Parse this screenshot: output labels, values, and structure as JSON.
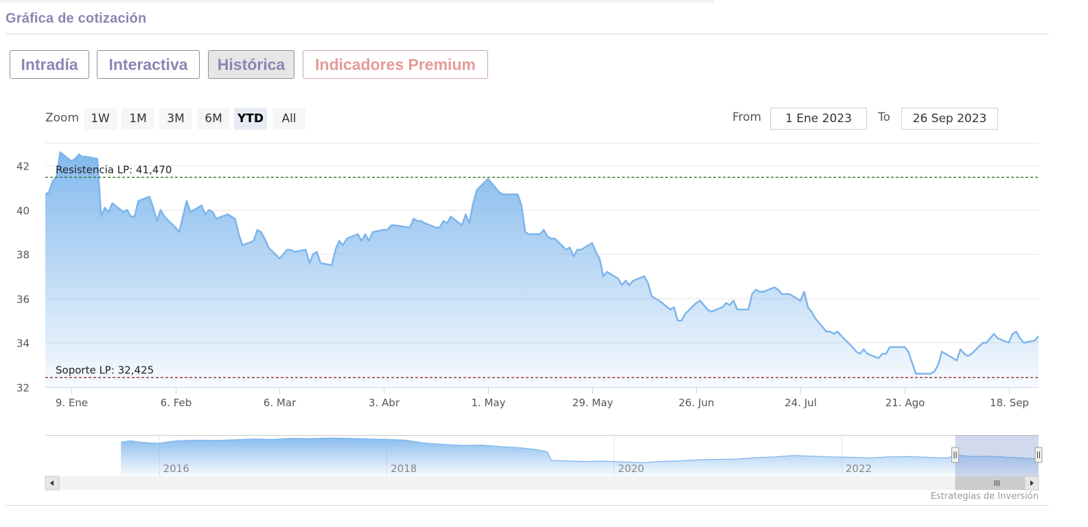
{
  "section": {
    "title": "Gráfica de cotización"
  },
  "tabs": [
    {
      "label": "Intradía",
      "active": false
    },
    {
      "label": "Interactiva",
      "active": false
    },
    {
      "label": "Histórica",
      "active": true
    },
    {
      "label": "Indicadores Premium",
      "active": false
    }
  ],
  "zoom": {
    "label": "Zoom",
    "buttons": [
      "1W",
      "1M",
      "3M",
      "6M",
      "YTD",
      "All"
    ],
    "selected": "YTD"
  },
  "range": {
    "from_label": "From",
    "from_value": "1 Ene 2023",
    "to_label": "To",
    "to_value": "26 Sep 2023"
  },
  "credit": "Estrategias de Inversión",
  "colors": {
    "series": "#7cb5ec",
    "resistance": "#1a6b1a",
    "support": "#8b1a1a",
    "tab_text": "#8a86b3",
    "premium_text": "#e59b96"
  },
  "chart_data": {
    "type": "area",
    "x_start": "2023-01-02",
    "x_end": "2023-09-26",
    "ylim": [
      32,
      43
    ],
    "y_ticks": [
      32,
      34,
      36,
      38,
      40,
      42
    ],
    "x_ticks": [
      {
        "date": "2023-01-09",
        "label": "9. Ene"
      },
      {
        "date": "2023-02-06",
        "label": "6. Feb"
      },
      {
        "date": "2023-03-06",
        "label": "6. Mar"
      },
      {
        "date": "2023-04-03",
        "label": "3. Abr"
      },
      {
        "date": "2023-05-01",
        "label": "1. May"
      },
      {
        "date": "2023-05-29",
        "label": "29. May"
      },
      {
        "date": "2023-06-26",
        "label": "26. Jun"
      },
      {
        "date": "2023-07-24",
        "label": "24. Jul"
      },
      {
        "date": "2023-08-21",
        "label": "21. Ago"
      },
      {
        "date": "2023-09-18",
        "label": "18. Sep"
      }
    ],
    "series": [
      {
        "points": [
          [
            "2023-01-02",
            40.7
          ],
          [
            "2023-01-03",
            40.8
          ],
          [
            "2023-01-04",
            41.3
          ],
          [
            "2023-01-05",
            41.5
          ],
          [
            "2023-01-06",
            42.6
          ],
          [
            "2023-01-09",
            42.2
          ],
          [
            "2023-01-10",
            42.3
          ],
          [
            "2023-01-11",
            42.5
          ],
          [
            "2023-01-12",
            42.4
          ],
          [
            "2023-01-13",
            42.4
          ],
          [
            "2023-01-16",
            42.3
          ],
          [
            "2023-01-17",
            39.7
          ],
          [
            "2023-01-18",
            40.1
          ],
          [
            "2023-01-19",
            39.9
          ],
          [
            "2023-01-20",
            40.3
          ],
          [
            "2023-01-23",
            39.9
          ],
          [
            "2023-01-24",
            40.0
          ],
          [
            "2023-01-25",
            39.7
          ],
          [
            "2023-01-26",
            39.7
          ],
          [
            "2023-01-27",
            40.4
          ],
          [
            "2023-01-30",
            40.6
          ],
          [
            "2023-01-31",
            40.1
          ],
          [
            "2023-02-01",
            39.5
          ],
          [
            "2023-02-02",
            40.0
          ],
          [
            "2023-02-03",
            39.7
          ],
          [
            "2023-02-06",
            39.2
          ],
          [
            "2023-02-07",
            39.0
          ],
          [
            "2023-02-08",
            39.7
          ],
          [
            "2023-02-09",
            40.4
          ],
          [
            "2023-02-10",
            39.9
          ],
          [
            "2023-02-13",
            40.2
          ],
          [
            "2023-02-14",
            39.8
          ],
          [
            "2023-02-15",
            40.0
          ],
          [
            "2023-02-16",
            39.9
          ],
          [
            "2023-02-17",
            39.6
          ],
          [
            "2023-02-20",
            39.8
          ],
          [
            "2023-02-21",
            39.7
          ],
          [
            "2023-02-22",
            39.6
          ],
          [
            "2023-02-23",
            38.9
          ],
          [
            "2023-02-24",
            38.4
          ],
          [
            "2023-02-27",
            38.6
          ],
          [
            "2023-02-28",
            39.1
          ],
          [
            "2023-03-01",
            39.0
          ],
          [
            "2023-03-02",
            38.7
          ],
          [
            "2023-03-03",
            38.3
          ],
          [
            "2023-03-06",
            37.8
          ],
          [
            "2023-03-07",
            38.0
          ],
          [
            "2023-03-08",
            38.2
          ],
          [
            "2023-03-09",
            38.2
          ],
          [
            "2023-03-10",
            38.1
          ],
          [
            "2023-03-13",
            38.2
          ],
          [
            "2023-03-14",
            37.6
          ],
          [
            "2023-03-15",
            38.0
          ],
          [
            "2023-03-16",
            38.1
          ],
          [
            "2023-03-17",
            37.6
          ],
          [
            "2023-03-20",
            37.5
          ],
          [
            "2023-03-21",
            38.2
          ],
          [
            "2023-03-22",
            38.6
          ],
          [
            "2023-03-23",
            38.4
          ],
          [
            "2023-03-24",
            38.7
          ],
          [
            "2023-03-27",
            38.9
          ],
          [
            "2023-03-28",
            38.6
          ],
          [
            "2023-03-29",
            38.9
          ],
          [
            "2023-03-30",
            38.6
          ],
          [
            "2023-03-31",
            39.0
          ],
          [
            "2023-04-03",
            39.1
          ],
          [
            "2023-04-04",
            39.1
          ],
          [
            "2023-04-05",
            39.3
          ],
          [
            "2023-04-06",
            39.3
          ],
          [
            "2023-04-10",
            39.2
          ],
          [
            "2023-04-11",
            39.6
          ],
          [
            "2023-04-12",
            39.5
          ],
          [
            "2023-04-13",
            39.5
          ],
          [
            "2023-04-14",
            39.4
          ],
          [
            "2023-04-17",
            39.2
          ],
          [
            "2023-04-18",
            39.2
          ],
          [
            "2023-04-19",
            39.5
          ],
          [
            "2023-04-20",
            39.4
          ],
          [
            "2023-04-21",
            39.7
          ],
          [
            "2023-04-24",
            39.3
          ],
          [
            "2023-04-25",
            39.8
          ],
          [
            "2023-04-26",
            39.4
          ],
          [
            "2023-04-27",
            40.3
          ],
          [
            "2023-04-28",
            40.9
          ],
          [
            "2023-05-01",
            41.4
          ],
          [
            "2023-05-02",
            41.2
          ],
          [
            "2023-05-03",
            41.0
          ],
          [
            "2023-05-04",
            40.8
          ],
          [
            "2023-05-05",
            40.7
          ],
          [
            "2023-05-08",
            40.7
          ],
          [
            "2023-05-09",
            40.7
          ],
          [
            "2023-05-10",
            40.2
          ],
          [
            "2023-05-11",
            39.0
          ],
          [
            "2023-05-12",
            38.9
          ],
          [
            "2023-05-15",
            38.9
          ],
          [
            "2023-05-16",
            39.1
          ],
          [
            "2023-05-17",
            38.8
          ],
          [
            "2023-05-18",
            38.7
          ],
          [
            "2023-05-19",
            38.7
          ],
          [
            "2023-05-22",
            38.2
          ],
          [
            "2023-05-23",
            38.3
          ],
          [
            "2023-05-24",
            37.9
          ],
          [
            "2023-05-25",
            38.2
          ],
          [
            "2023-05-26",
            38.2
          ],
          [
            "2023-05-29",
            38.5
          ],
          [
            "2023-05-30",
            38.1
          ],
          [
            "2023-05-31",
            37.8
          ],
          [
            "2023-06-01",
            37.0
          ],
          [
            "2023-06-02",
            37.2
          ],
          [
            "2023-06-05",
            36.9
          ],
          [
            "2023-06-06",
            36.6
          ],
          [
            "2023-06-07",
            36.8
          ],
          [
            "2023-06-08",
            36.6
          ],
          [
            "2023-06-09",
            36.8
          ],
          [
            "2023-06-12",
            37.0
          ],
          [
            "2023-06-13",
            36.7
          ],
          [
            "2023-06-14",
            36.1
          ],
          [
            "2023-06-15",
            36.0
          ],
          [
            "2023-06-16",
            35.9
          ],
          [
            "2023-06-19",
            35.5
          ],
          [
            "2023-06-20",
            35.6
          ],
          [
            "2023-06-21",
            35.0
          ],
          [
            "2023-06-22",
            35.0
          ],
          [
            "2023-06-23",
            35.3
          ],
          [
            "2023-06-26",
            35.8
          ],
          [
            "2023-06-27",
            35.9
          ],
          [
            "2023-06-28",
            35.7
          ],
          [
            "2023-06-29",
            35.5
          ],
          [
            "2023-06-30",
            35.4
          ],
          [
            "2023-07-03",
            35.6
          ],
          [
            "2023-07-04",
            35.8
          ],
          [
            "2023-07-05",
            35.7
          ],
          [
            "2023-07-06",
            35.9
          ],
          [
            "2023-07-07",
            35.5
          ],
          [
            "2023-07-10",
            35.5
          ],
          [
            "2023-07-11",
            36.2
          ],
          [
            "2023-07-12",
            36.4
          ],
          [
            "2023-07-13",
            36.3
          ],
          [
            "2023-07-14",
            36.3
          ],
          [
            "2023-07-17",
            36.5
          ],
          [
            "2023-07-18",
            36.4
          ],
          [
            "2023-07-19",
            36.2
          ],
          [
            "2023-07-20",
            36.2
          ],
          [
            "2023-07-21",
            36.2
          ],
          [
            "2023-07-24",
            35.9
          ],
          [
            "2023-07-25",
            36.3
          ],
          [
            "2023-07-26",
            35.6
          ],
          [
            "2023-07-27",
            35.4
          ],
          [
            "2023-07-28",
            35.1
          ],
          [
            "2023-07-31",
            34.5
          ],
          [
            "2023-08-01",
            34.5
          ],
          [
            "2023-08-02",
            34.4
          ],
          [
            "2023-08-03",
            34.5
          ],
          [
            "2023-08-04",
            34.3
          ],
          [
            "2023-08-07",
            33.8
          ],
          [
            "2023-08-08",
            33.6
          ],
          [
            "2023-08-09",
            33.5
          ],
          [
            "2023-08-10",
            33.7
          ],
          [
            "2023-08-11",
            33.5
          ],
          [
            "2023-08-14",
            33.3
          ],
          [
            "2023-08-15",
            33.5
          ],
          [
            "2023-08-16",
            33.5
          ],
          [
            "2023-08-17",
            33.8
          ],
          [
            "2023-08-18",
            33.8
          ],
          [
            "2023-08-21",
            33.8
          ],
          [
            "2023-08-22",
            33.6
          ],
          [
            "2023-08-23",
            33.1
          ],
          [
            "2023-08-24",
            32.6
          ],
          [
            "2023-08-25",
            32.6
          ],
          [
            "2023-08-28",
            32.6
          ],
          [
            "2023-08-29",
            32.7
          ],
          [
            "2023-08-30",
            33.0
          ],
          [
            "2023-08-31",
            33.6
          ],
          [
            "2023-09-01",
            33.5
          ],
          [
            "2023-09-04",
            33.2
          ],
          [
            "2023-09-05",
            33.7
          ],
          [
            "2023-09-06",
            33.5
          ],
          [
            "2023-09-07",
            33.4
          ],
          [
            "2023-09-08",
            33.5
          ],
          [
            "2023-09-11",
            34.0
          ],
          [
            "2023-09-12",
            34.0
          ],
          [
            "2023-09-13",
            34.2
          ],
          [
            "2023-09-14",
            34.4
          ],
          [
            "2023-09-15",
            34.2
          ],
          [
            "2023-09-18",
            34.0
          ],
          [
            "2023-09-19",
            34.4
          ],
          [
            "2023-09-20",
            34.5
          ],
          [
            "2023-09-21",
            34.2
          ],
          [
            "2023-09-22",
            34.0
          ],
          [
            "2023-09-25",
            34.1
          ],
          [
            "2023-09-26",
            34.3
          ]
        ]
      }
    ],
    "lines": [
      {
        "label": "Resistencia LP: 41,470",
        "value": 41.47
      },
      {
        "label": "Soporte LP: 32,425",
        "value": 32.425
      }
    ],
    "navigator": {
      "x_start": "2015-01-01",
      "x_end": "2023-09-26",
      "ylim": [
        25,
        48
      ],
      "tick_labels": [
        {
          "year": 2016,
          "label": "2016"
        },
        {
          "year": 2018,
          "label": "2018"
        },
        {
          "year": 2020,
          "label": "2020"
        },
        {
          "year": 2022,
          "label": "2022"
        }
      ],
      "selection": {
        "from": "2023-01-01",
        "to": "2023-09-26"
      },
      "points": [
        [
          "2015-09-01",
          44.0
        ],
        [
          "2015-10-01",
          44.8
        ],
        [
          "2015-11-01",
          44.0
        ],
        [
          "2015-12-01",
          43.6
        ],
        [
          "2016-01-01",
          43.4
        ],
        [
          "2016-02-01",
          44.2
        ],
        [
          "2016-03-01",
          44.8
        ],
        [
          "2016-05-01",
          45.2
        ],
        [
          "2016-07-01",
          45.0
        ],
        [
          "2016-09-01",
          45.4
        ],
        [
          "2016-11-01",
          45.8
        ],
        [
          "2017-01-01",
          45.6
        ],
        [
          "2017-03-01",
          46.2
        ],
        [
          "2017-05-01",
          46.0
        ],
        [
          "2017-07-01",
          46.4
        ],
        [
          "2017-09-01",
          46.2
        ],
        [
          "2017-11-01",
          45.8
        ],
        [
          "2018-01-01",
          45.6
        ],
        [
          "2018-03-01",
          45.2
        ],
        [
          "2018-05-01",
          43.6
        ],
        [
          "2018-07-01",
          42.8
        ],
        [
          "2018-09-01",
          42.2
        ],
        [
          "2018-11-01",
          42.4
        ],
        [
          "2019-01-01",
          41.6
        ],
        [
          "2019-03-01",
          41.0
        ],
        [
          "2019-05-01",
          39.8
        ],
        [
          "2019-06-01",
          38.6
        ],
        [
          "2019-06-15",
          33.8
        ],
        [
          "2019-08-01",
          33.6
        ],
        [
          "2019-10-01",
          33.2
        ],
        [
          "2019-12-01",
          33.4
        ],
        [
          "2020-02-01",
          33.0
        ],
        [
          "2020-04-01",
          32.6
        ],
        [
          "2020-06-01",
          33.2
        ],
        [
          "2020-08-01",
          33.6
        ],
        [
          "2020-10-01",
          34.2
        ],
        [
          "2020-12-01",
          34.4
        ],
        [
          "2021-02-01",
          34.6
        ],
        [
          "2021-04-01",
          35.4
        ],
        [
          "2021-06-01",
          35.8
        ],
        [
          "2021-08-01",
          36.6
        ],
        [
          "2021-10-01",
          36.2
        ],
        [
          "2021-12-01",
          35.8
        ],
        [
          "2022-02-01",
          35.6
        ],
        [
          "2022-04-01",
          35.2
        ],
        [
          "2022-06-01",
          35.8
        ],
        [
          "2022-08-01",
          36.0
        ],
        [
          "2022-10-01",
          35.6
        ],
        [
          "2022-12-01",
          35.2
        ],
        [
          "2023-01-15",
          36.6
        ],
        [
          "2023-03-01",
          36.0
        ],
        [
          "2023-05-01",
          36.2
        ],
        [
          "2023-06-15",
          35.6
        ],
        [
          "2023-08-01",
          35.2
        ],
        [
          "2023-09-26",
          34.6
        ]
      ]
    }
  }
}
